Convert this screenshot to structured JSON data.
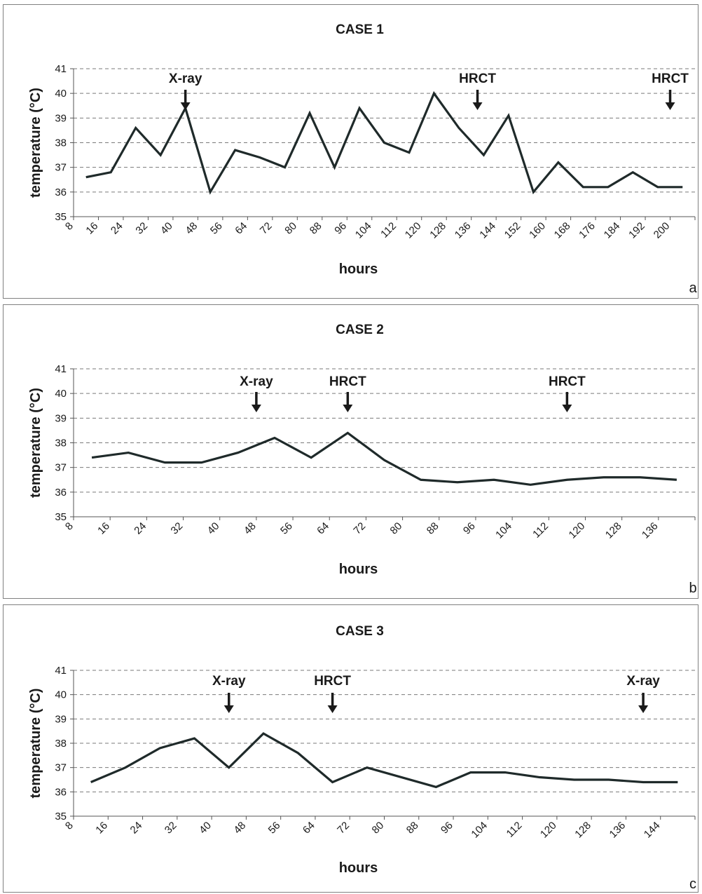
{
  "chart_data": [
    {
      "type": "line",
      "title": "CASE 1",
      "xlabel": "hours",
      "ylabel": "temperature (°C)",
      "panel_label": "a",
      "ylim": [
        35,
        41
      ],
      "yticks": [
        35,
        36,
        37,
        38,
        39,
        40,
        41
      ],
      "grid": "horizontal dashed",
      "categories": [
        "8",
        "16",
        "24",
        "32",
        "40",
        "48",
        "56",
        "64",
        "72",
        "80",
        "88",
        "96",
        "104",
        "112",
        "120",
        "128",
        "136",
        "144",
        "152",
        "160",
        "168",
        "176",
        "184",
        "192",
        "200"
      ],
      "series": [
        {
          "values": [
            36.6,
            36.8,
            38.6,
            37.5,
            39.4,
            36.0,
            37.7,
            37.4,
            37.0,
            39.2,
            37.0,
            39.4,
            38.0,
            37.6,
            40.0,
            38.6,
            37.5,
            39.1,
            36.0,
            37.2,
            36.2,
            36.2,
            36.8,
            36.2,
            36.2
          ]
        }
      ],
      "annotations": [
        {
          "text": "X-ray",
          "x": 40
        },
        {
          "text": "HRCT",
          "x": 134
        },
        {
          "text": "HRCT",
          "x": 196
        }
      ]
    },
    {
      "type": "line",
      "title": "CASE 2",
      "xlabel": "hours",
      "ylabel": "temperature (°C)",
      "panel_label": "b",
      "ylim": [
        35,
        41
      ],
      "yticks": [
        35,
        36,
        37,
        38,
        39,
        40,
        41
      ],
      "grid": "horizontal dashed",
      "categories": [
        "8",
        "16",
        "24",
        "32",
        "40",
        "48",
        "56",
        "64",
        "72",
        "80",
        "88",
        "96",
        "104",
        "112",
        "120",
        "128",
        "136"
      ],
      "series": [
        {
          "values": [
            37.4,
            37.6,
            37.2,
            37.2,
            37.6,
            38.2,
            37.4,
            38.4,
            37.3,
            36.5,
            36.4,
            36.5,
            36.3,
            36.5,
            36.6,
            36.6,
            36.5
          ]
        }
      ],
      "annotations": [
        {
          "text": "X-ray",
          "x": 44
        },
        {
          "text": "HRCT",
          "x": 64
        },
        {
          "text": "HRCT",
          "x": 112
        }
      ]
    },
    {
      "type": "line",
      "title": "CASE 3",
      "xlabel": "hours",
      "ylabel": "temperature (°C)",
      "panel_label": "c",
      "ylim": [
        35,
        41
      ],
      "yticks": [
        35,
        36,
        37,
        38,
        39,
        40,
        41
      ],
      "grid": "horizontal dashed",
      "categories": [
        "8",
        "16",
        "24",
        "32",
        "40",
        "48",
        "56",
        "64",
        "72",
        "80",
        "88",
        "96",
        "104",
        "112",
        "120",
        "128",
        "136",
        "144"
      ],
      "series": [
        {
          "values": [
            36.4,
            37.0,
            37.8,
            38.2,
            37.0,
            38.4,
            37.6,
            36.4,
            37.0,
            36.6,
            36.2,
            36.8,
            36.8,
            36.6,
            36.5,
            36.5,
            36.4,
            36.4
          ]
        }
      ],
      "annotations": [
        {
          "text": "X-ray",
          "x": 40
        },
        {
          "text": "HRCT",
          "x": 64
        },
        {
          "text": "X-ray",
          "x": 136
        }
      ]
    }
  ]
}
